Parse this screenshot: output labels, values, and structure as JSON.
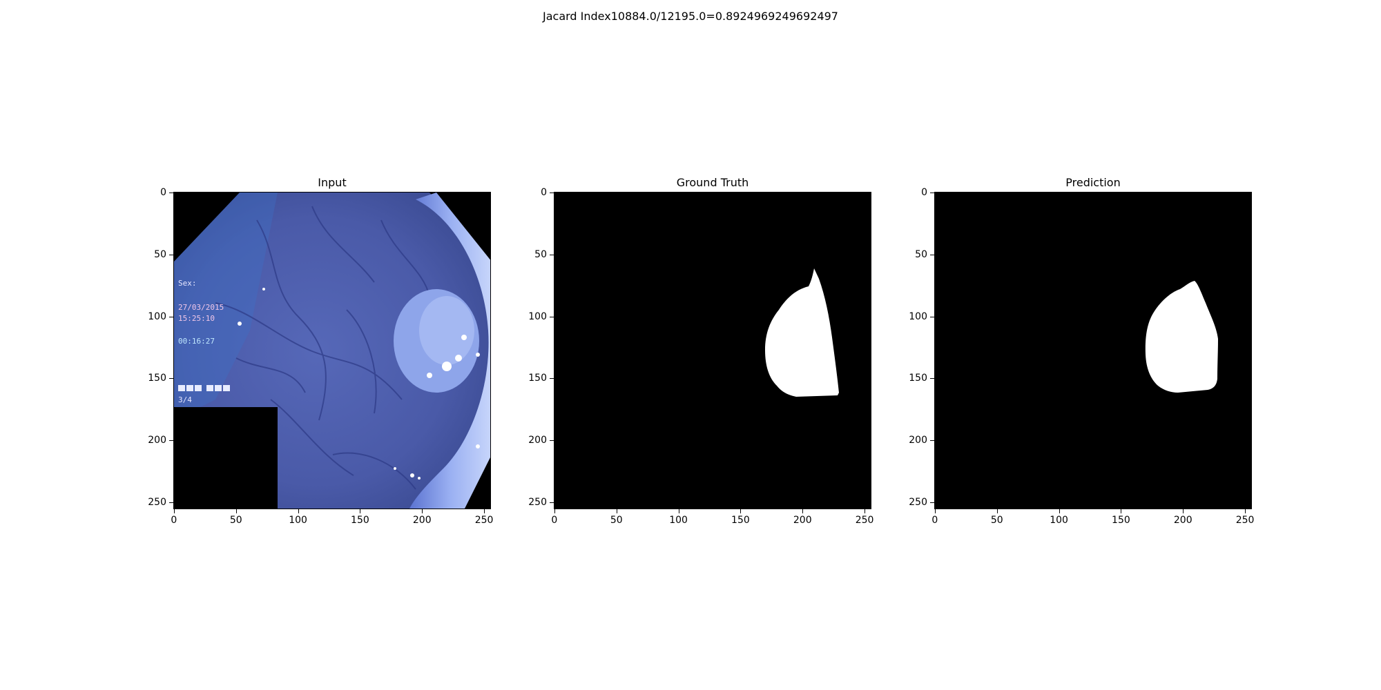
{
  "figure": {
    "suptitle": "Jacard Index10884.0/12195.0=0.8924969249692497"
  },
  "axes_ticks": {
    "x": [
      "0",
      "50",
      "100",
      "150",
      "200",
      "250"
    ],
    "y": [
      "0",
      "50",
      "100",
      "150",
      "200",
      "250"
    ]
  },
  "panels": [
    {
      "title": "Input",
      "content": "endoscopy-image"
    },
    {
      "title": "Ground Truth",
      "content": "ground-truth-mask"
    },
    {
      "title": "Prediction",
      "content": "prediction-mask"
    }
  ],
  "overlay_text": {
    "line1": "Sex:",
    "line2": "27/03/2015",
    "line3": "15:25:10",
    "line4": "00:16:27",
    "line5": "3/4"
  },
  "colors": {
    "mask_background": "#000000",
    "mask_foreground": "#ffffff",
    "tissue_base": "#4a5fb0",
    "tissue_light": "#9fb4f0"
  }
}
